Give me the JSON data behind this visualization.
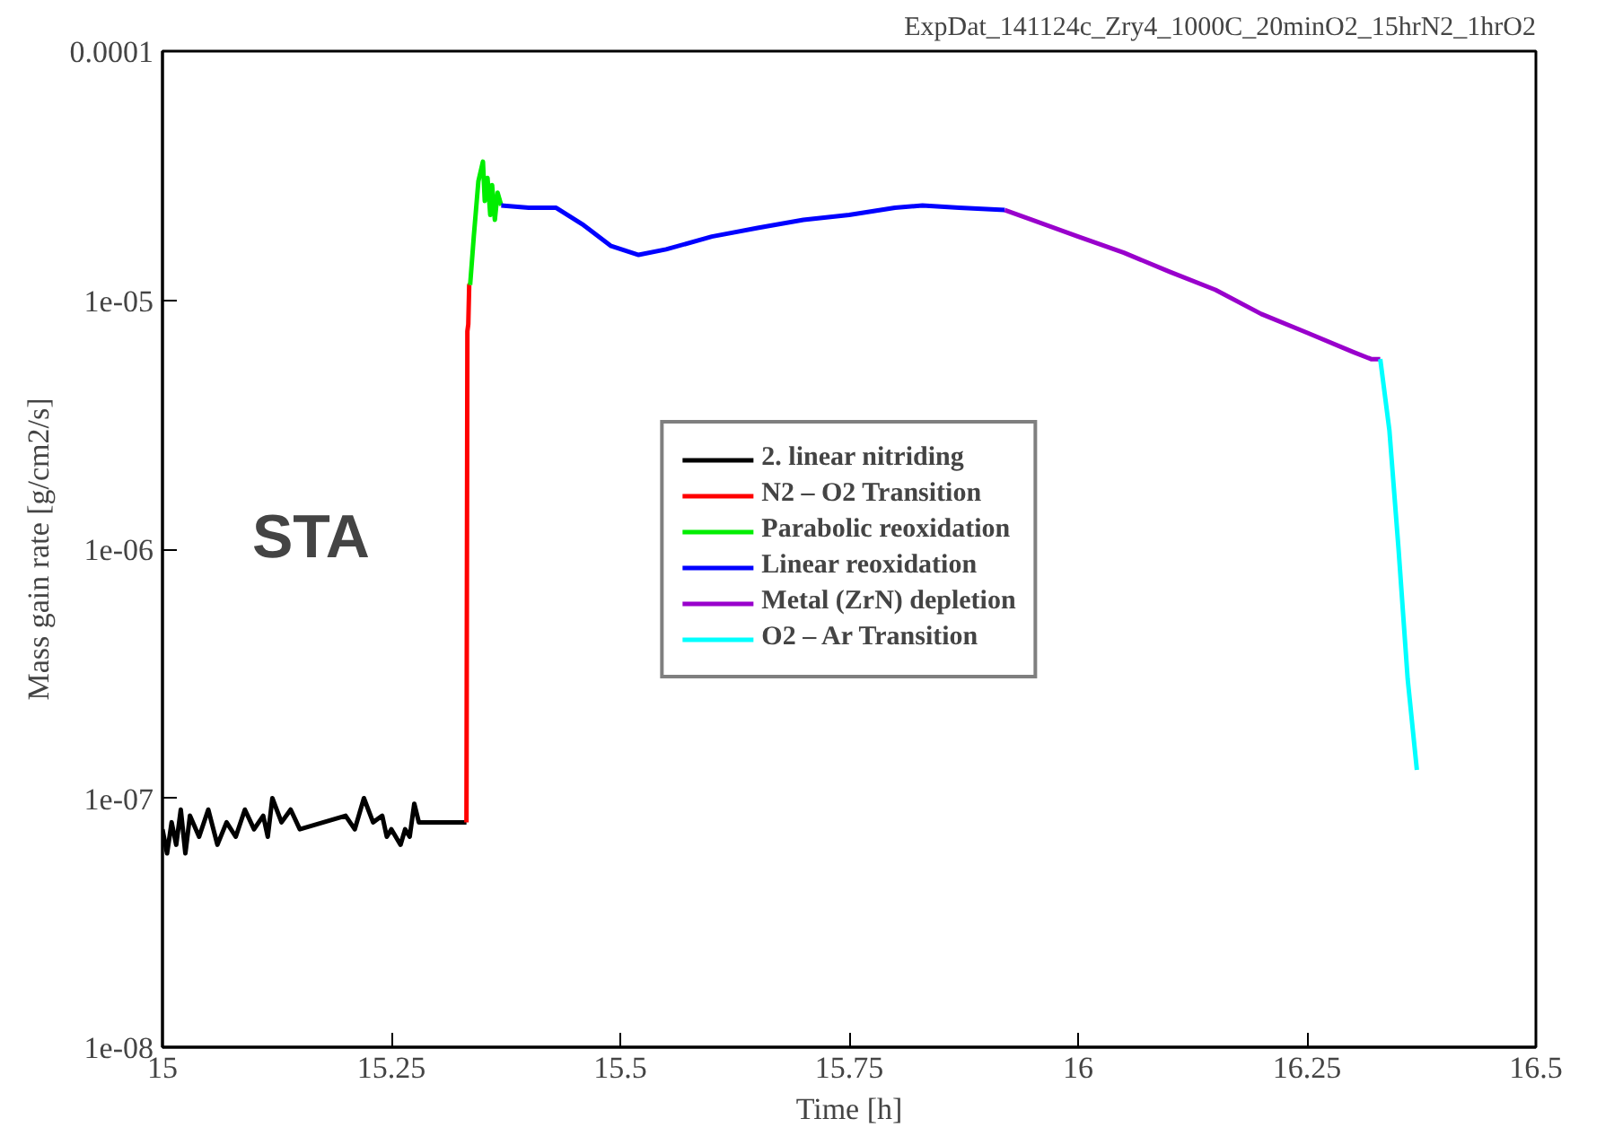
{
  "chart_data": {
    "type": "line",
    "title": "ExpDat_141124c_Zry4_1000C_20minO2_15hrN2_1hrO2",
    "xlabel": "Time [h]",
    "ylabel": "Mass gain rate [g/cm2/s]",
    "log": "y",
    "grid": false,
    "legend": "center",
    "line_style": "solid",
    "xlim": [
      15,
      16.5
    ],
    "ylim": [
      1e-08,
      0.0001
    ],
    "xticks": [
      15,
      15.25,
      15.5,
      15.75,
      16,
      16.25,
      16.5
    ],
    "yticks": [
      {
        "value": 1e-08,
        "label": "1e-08"
      },
      {
        "value": 1e-07,
        "label": "1e-07"
      },
      {
        "value": 1e-06,
        "label": "1e-06"
      },
      {
        "value": 1e-05,
        "label": "1e-05"
      },
      {
        "value": 0.0001,
        "label": "0.0001"
      }
    ],
    "annotations": [
      "STA"
    ],
    "series": [
      {
        "name": "2. linear nitriding",
        "color": "#000000",
        "x": [
          15.0,
          15.005,
          15.01,
          15.015,
          15.02,
          15.025,
          15.03,
          15.04,
          15.05,
          15.06,
          15.07,
          15.08,
          15.09,
          15.1,
          15.11,
          15.115,
          15.12,
          15.13,
          15.14,
          15.15,
          15.2,
          15.21,
          15.22,
          15.23,
          15.24,
          15.245,
          15.25,
          15.26,
          15.265,
          15.27,
          15.275,
          15.28,
          15.332
        ],
        "values": [
          7.5e-08,
          6e-08,
          8e-08,
          6.5e-08,
          9e-08,
          6e-08,
          8.5e-08,
          7e-08,
          9e-08,
          6.5e-08,
          8e-08,
          7e-08,
          9e-08,
          7.5e-08,
          8.5e-08,
          7e-08,
          1e-07,
          8e-08,
          9e-08,
          7.5e-08,
          8.5e-08,
          7.5e-08,
          1e-07,
          8e-08,
          8.5e-08,
          7e-08,
          7.5e-08,
          6.5e-08,
          7.5e-08,
          7e-08,
          9.5e-08,
          8e-08,
          8e-08
        ]
      },
      {
        "name": "N2 – O2 Transition",
        "color": "#ff0000",
        "x": [
          15.332,
          15.333,
          15.334,
          15.335,
          15.336
        ],
        "values": [
          8e-08,
          7.5e-06,
          8e-06,
          1.15e-05,
          1.15e-05
        ]
      },
      {
        "name": "Parabolic reoxidation",
        "color": "#00ee00",
        "x": [
          15.336,
          15.34,
          15.345,
          15.35,
          15.352,
          15.355,
          15.358,
          15.36,
          15.363,
          15.366,
          15.37
        ],
        "values": [
          1.15e-05,
          1.8e-05,
          3e-05,
          3.6e-05,
          2.5e-05,
          3.1e-05,
          2.2e-05,
          2.9e-05,
          2.1e-05,
          2.7e-05,
          2.4e-05
        ]
      },
      {
        "name": "Linear reoxidation",
        "color": "#0000ff",
        "x": [
          15.37,
          15.4,
          15.43,
          15.46,
          15.49,
          15.52,
          15.55,
          15.6,
          15.65,
          15.7,
          15.75,
          15.8,
          15.83,
          15.87,
          15.92
        ],
        "values": [
          2.4e-05,
          2.35e-05,
          2.35e-05,
          2e-05,
          1.65e-05,
          1.52e-05,
          1.6e-05,
          1.8e-05,
          1.95e-05,
          2.1e-05,
          2.2e-05,
          2.35e-05,
          2.4e-05,
          2.35e-05,
          2.3e-05
        ]
      },
      {
        "name": "Metal (ZrN) depletion",
        "color": "#9900cc",
        "x": [
          15.92,
          15.95,
          16.0,
          16.05,
          16.1,
          16.15,
          16.2,
          16.25,
          16.3,
          16.32,
          16.33
        ],
        "values": [
          2.3e-05,
          2.1e-05,
          1.8e-05,
          1.55e-05,
          1.3e-05,
          1.1e-05,
          8.8e-06,
          7.4e-06,
          6.2e-06,
          5.8e-06,
          5.8e-06
        ]
      },
      {
        "name": "O2 – Ar Transition",
        "color": "#00ffff",
        "x": [
          16.33,
          16.34,
          16.35,
          16.36,
          16.37
        ],
        "values": [
          5.8e-06,
          3e-06,
          1e-06,
          3e-07,
          1.3e-07
        ]
      }
    ]
  }
}
